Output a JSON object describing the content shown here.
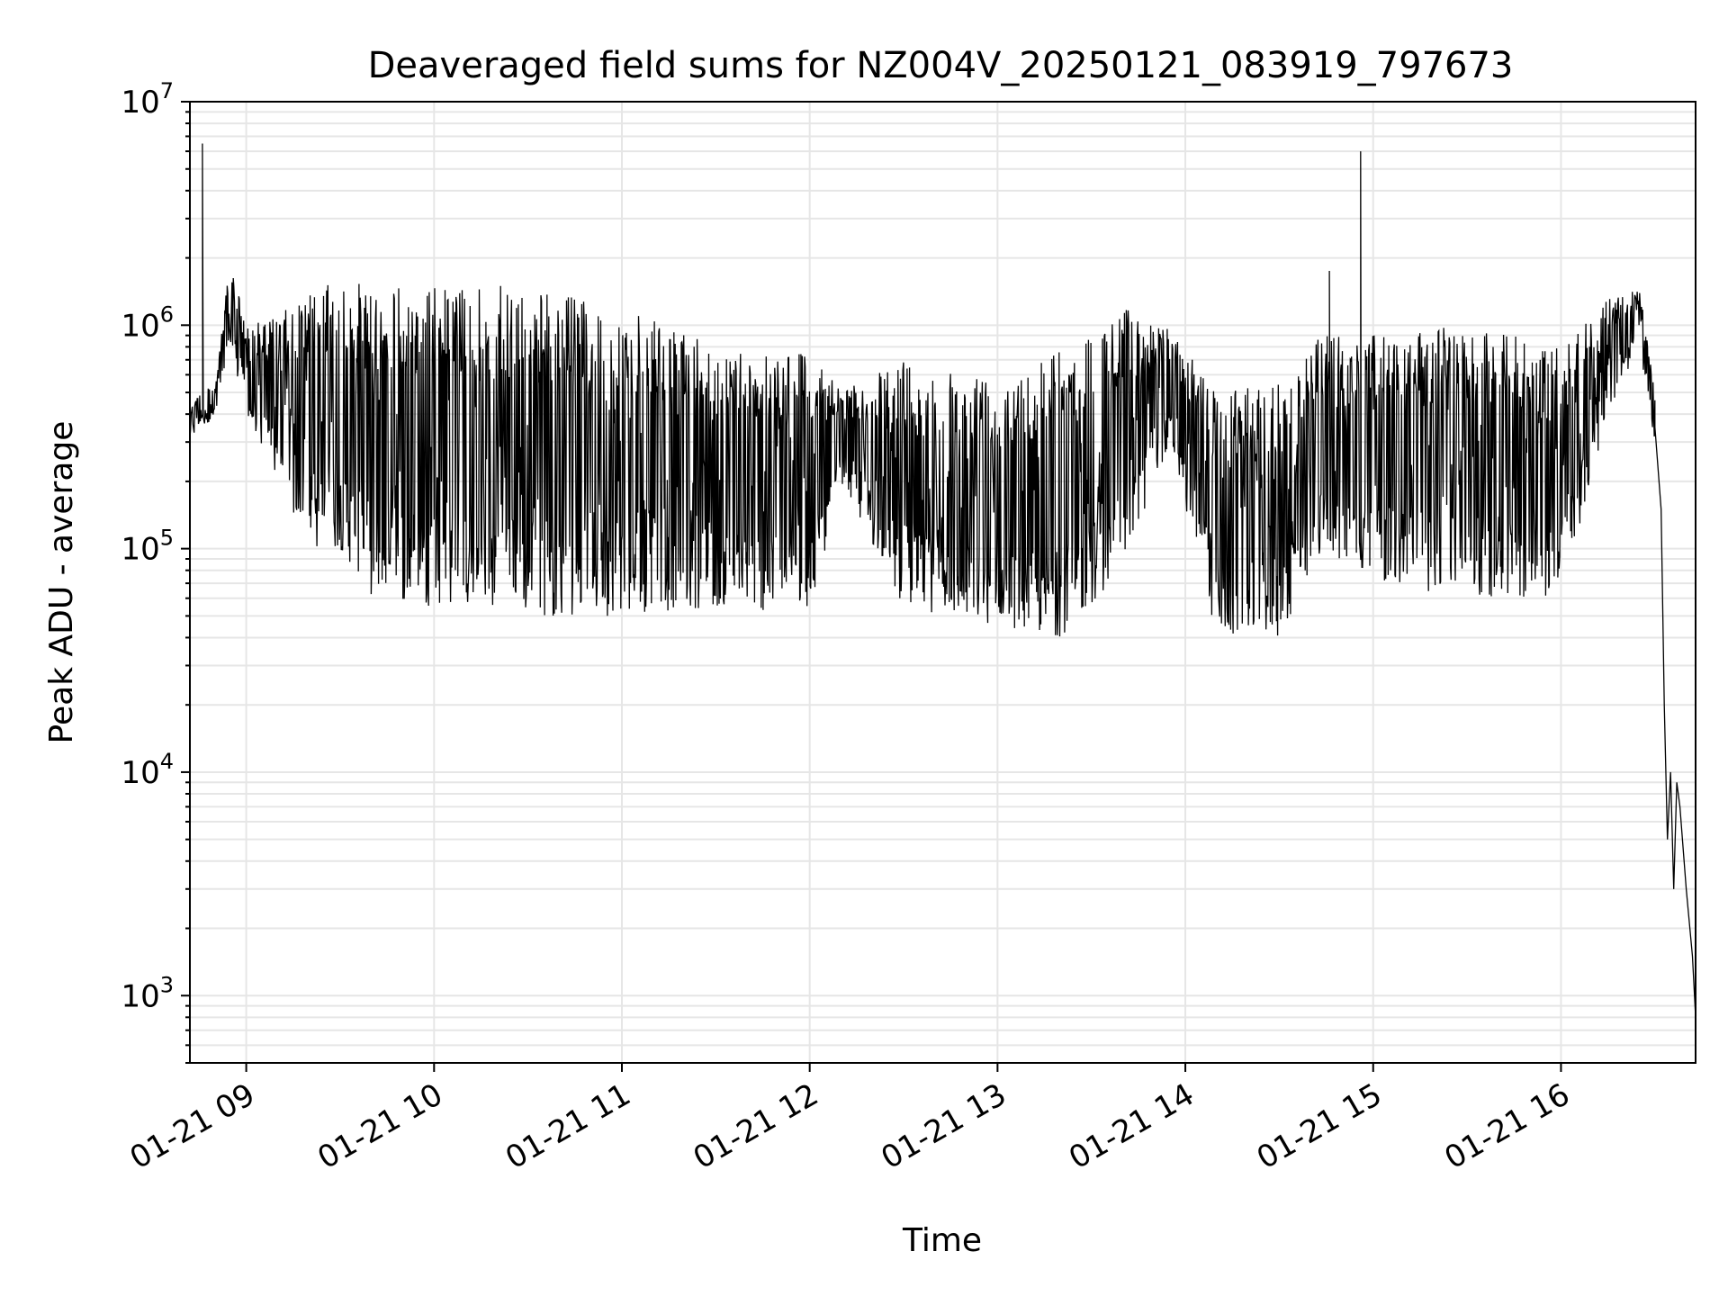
{
  "chart_data": {
    "type": "line",
    "title": "Deaveraged field sums for NZ004V_20250121_083919_797673",
    "xlabel": "Time",
    "ylabel": "Peak ADU - average",
    "yscale": "log",
    "ylim": [
      500,
      10000000
    ],
    "xlim": [
      "2025-01-21 08:42",
      "2025-01-21 16:43"
    ],
    "grid": true,
    "x_ticks": [
      {
        "time": "2025-01-21 09:00",
        "label": "01-21 09"
      },
      {
        "time": "2025-01-21 10:00",
        "label": "01-21 10"
      },
      {
        "time": "2025-01-21 11:00",
        "label": "01-21 11"
      },
      {
        "time": "2025-01-21 12:00",
        "label": "01-21 12"
      },
      {
        "time": "2025-01-21 13:00",
        "label": "01-21 13"
      },
      {
        "time": "2025-01-21 14:00",
        "label": "01-21 14"
      },
      {
        "time": "2025-01-21 15:00",
        "label": "01-21 15"
      },
      {
        "time": "2025-01-21 16:00",
        "label": "01-21 16"
      }
    ],
    "y_ticks": [
      {
        "value": 1000,
        "base": "10",
        "exp": "3"
      },
      {
        "value": 10000,
        "base": "10",
        "exp": "4"
      },
      {
        "value": 100000,
        "base": "10",
        "exp": "5"
      },
      {
        "value": 1000000,
        "base": "10",
        "exp": "6"
      },
      {
        "value": 10000000,
        "base": "10",
        "exp": "7"
      }
    ],
    "series": [
      {
        "color": "#000000",
        "envelope": [
          {
            "time": "2025-01-21 08:42",
            "low": 300000,
            "high": 450000
          },
          {
            "time": "2025-01-21 08:45",
            "low": 350000,
            "high": 500000
          },
          {
            "time": "2025-01-21 08:50",
            "low": 380000,
            "high": 550000
          },
          {
            "time": "2025-01-21 08:55",
            "low": 800000,
            "high": 2000000
          },
          {
            "time": "2025-01-21 09:00",
            "low": 400000,
            "high": 1000000
          },
          {
            "time": "2025-01-21 09:10",
            "low": 200000,
            "high": 1100000
          },
          {
            "time": "2025-01-21 09:20",
            "low": 100000,
            "high": 1400000
          },
          {
            "time": "2025-01-21 09:30",
            "low": 100000,
            "high": 1600000
          },
          {
            "time": "2025-01-21 09:40",
            "low": 60000,
            "high": 1500000
          },
          {
            "time": "2025-01-21 10:00",
            "low": 55000,
            "high": 1500000
          },
          {
            "time": "2025-01-21 10:30",
            "low": 50000,
            "high": 1500000
          },
          {
            "time": "2025-01-21 11:00",
            "low": 50000,
            "high": 1200000
          },
          {
            "time": "2025-01-21 11:30",
            "low": 55000,
            "high": 800000
          },
          {
            "time": "2025-01-21 12:00",
            "low": 50000,
            "high": 800000
          },
          {
            "time": "2025-01-21 12:10",
            "low": 200000,
            "high": 500000
          },
          {
            "time": "2025-01-21 12:30",
            "low": 55000,
            "high": 700000
          },
          {
            "time": "2025-01-21 13:00",
            "low": 45000,
            "high": 600000
          },
          {
            "time": "2025-01-21 13:20",
            "low": 40000,
            "high": 800000
          },
          {
            "time": "2025-01-21 13:40",
            "low": 80000,
            "high": 1200000
          },
          {
            "time": "2025-01-21 13:55",
            "low": 300000,
            "high": 1000000
          },
          {
            "time": "2025-01-21 14:10",
            "low": 40000,
            "high": 500000
          },
          {
            "time": "2025-01-21 14:30",
            "low": 40000,
            "high": 550000
          },
          {
            "time": "2025-01-21 14:45",
            "low": 100000,
            "high": 1000000
          },
          {
            "time": "2025-01-21 15:00",
            "low": 70000,
            "high": 900000
          },
          {
            "time": "2025-01-21 15:30",
            "low": 60000,
            "high": 1000000
          },
          {
            "time": "2025-01-21 16:00",
            "low": 60000,
            "high": 800000
          },
          {
            "time": "2025-01-21 16:15",
            "low": 400000,
            "high": 1300000
          },
          {
            "time": "2025-01-21 16:25",
            "low": 800000,
            "high": 1500000
          },
          {
            "time": "2025-01-21 16:30",
            "low": 300000,
            "high": 500000
          }
        ],
        "spikes": [
          {
            "time": "2025-01-21 08:46",
            "value": 6500000
          },
          {
            "time": "2025-01-21 14:56",
            "value": 6000000
          },
          {
            "time": "2025-01-21 14:46",
            "value": 1750000
          }
        ],
        "tail": [
          {
            "time": "2025-01-21 16:30",
            "value": 350000
          },
          {
            "time": "2025-01-21 16:32",
            "value": 150000
          },
          {
            "time": "2025-01-21 16:33",
            "value": 20000
          },
          {
            "time": "2025-01-21 16:34",
            "value": 5000
          },
          {
            "time": "2025-01-21 16:35",
            "value": 10000
          },
          {
            "time": "2025-01-21 16:36",
            "value": 3000
          },
          {
            "time": "2025-01-21 16:37",
            "value": 9000
          },
          {
            "time": "2025-01-21 16:38",
            "value": 7000
          },
          {
            "time": "2025-01-21 16:40",
            "value": 3000
          },
          {
            "time": "2025-01-21 16:42",
            "value": 1500
          },
          {
            "time": "2025-01-21 16:43",
            "value": 800
          }
        ]
      }
    ]
  }
}
